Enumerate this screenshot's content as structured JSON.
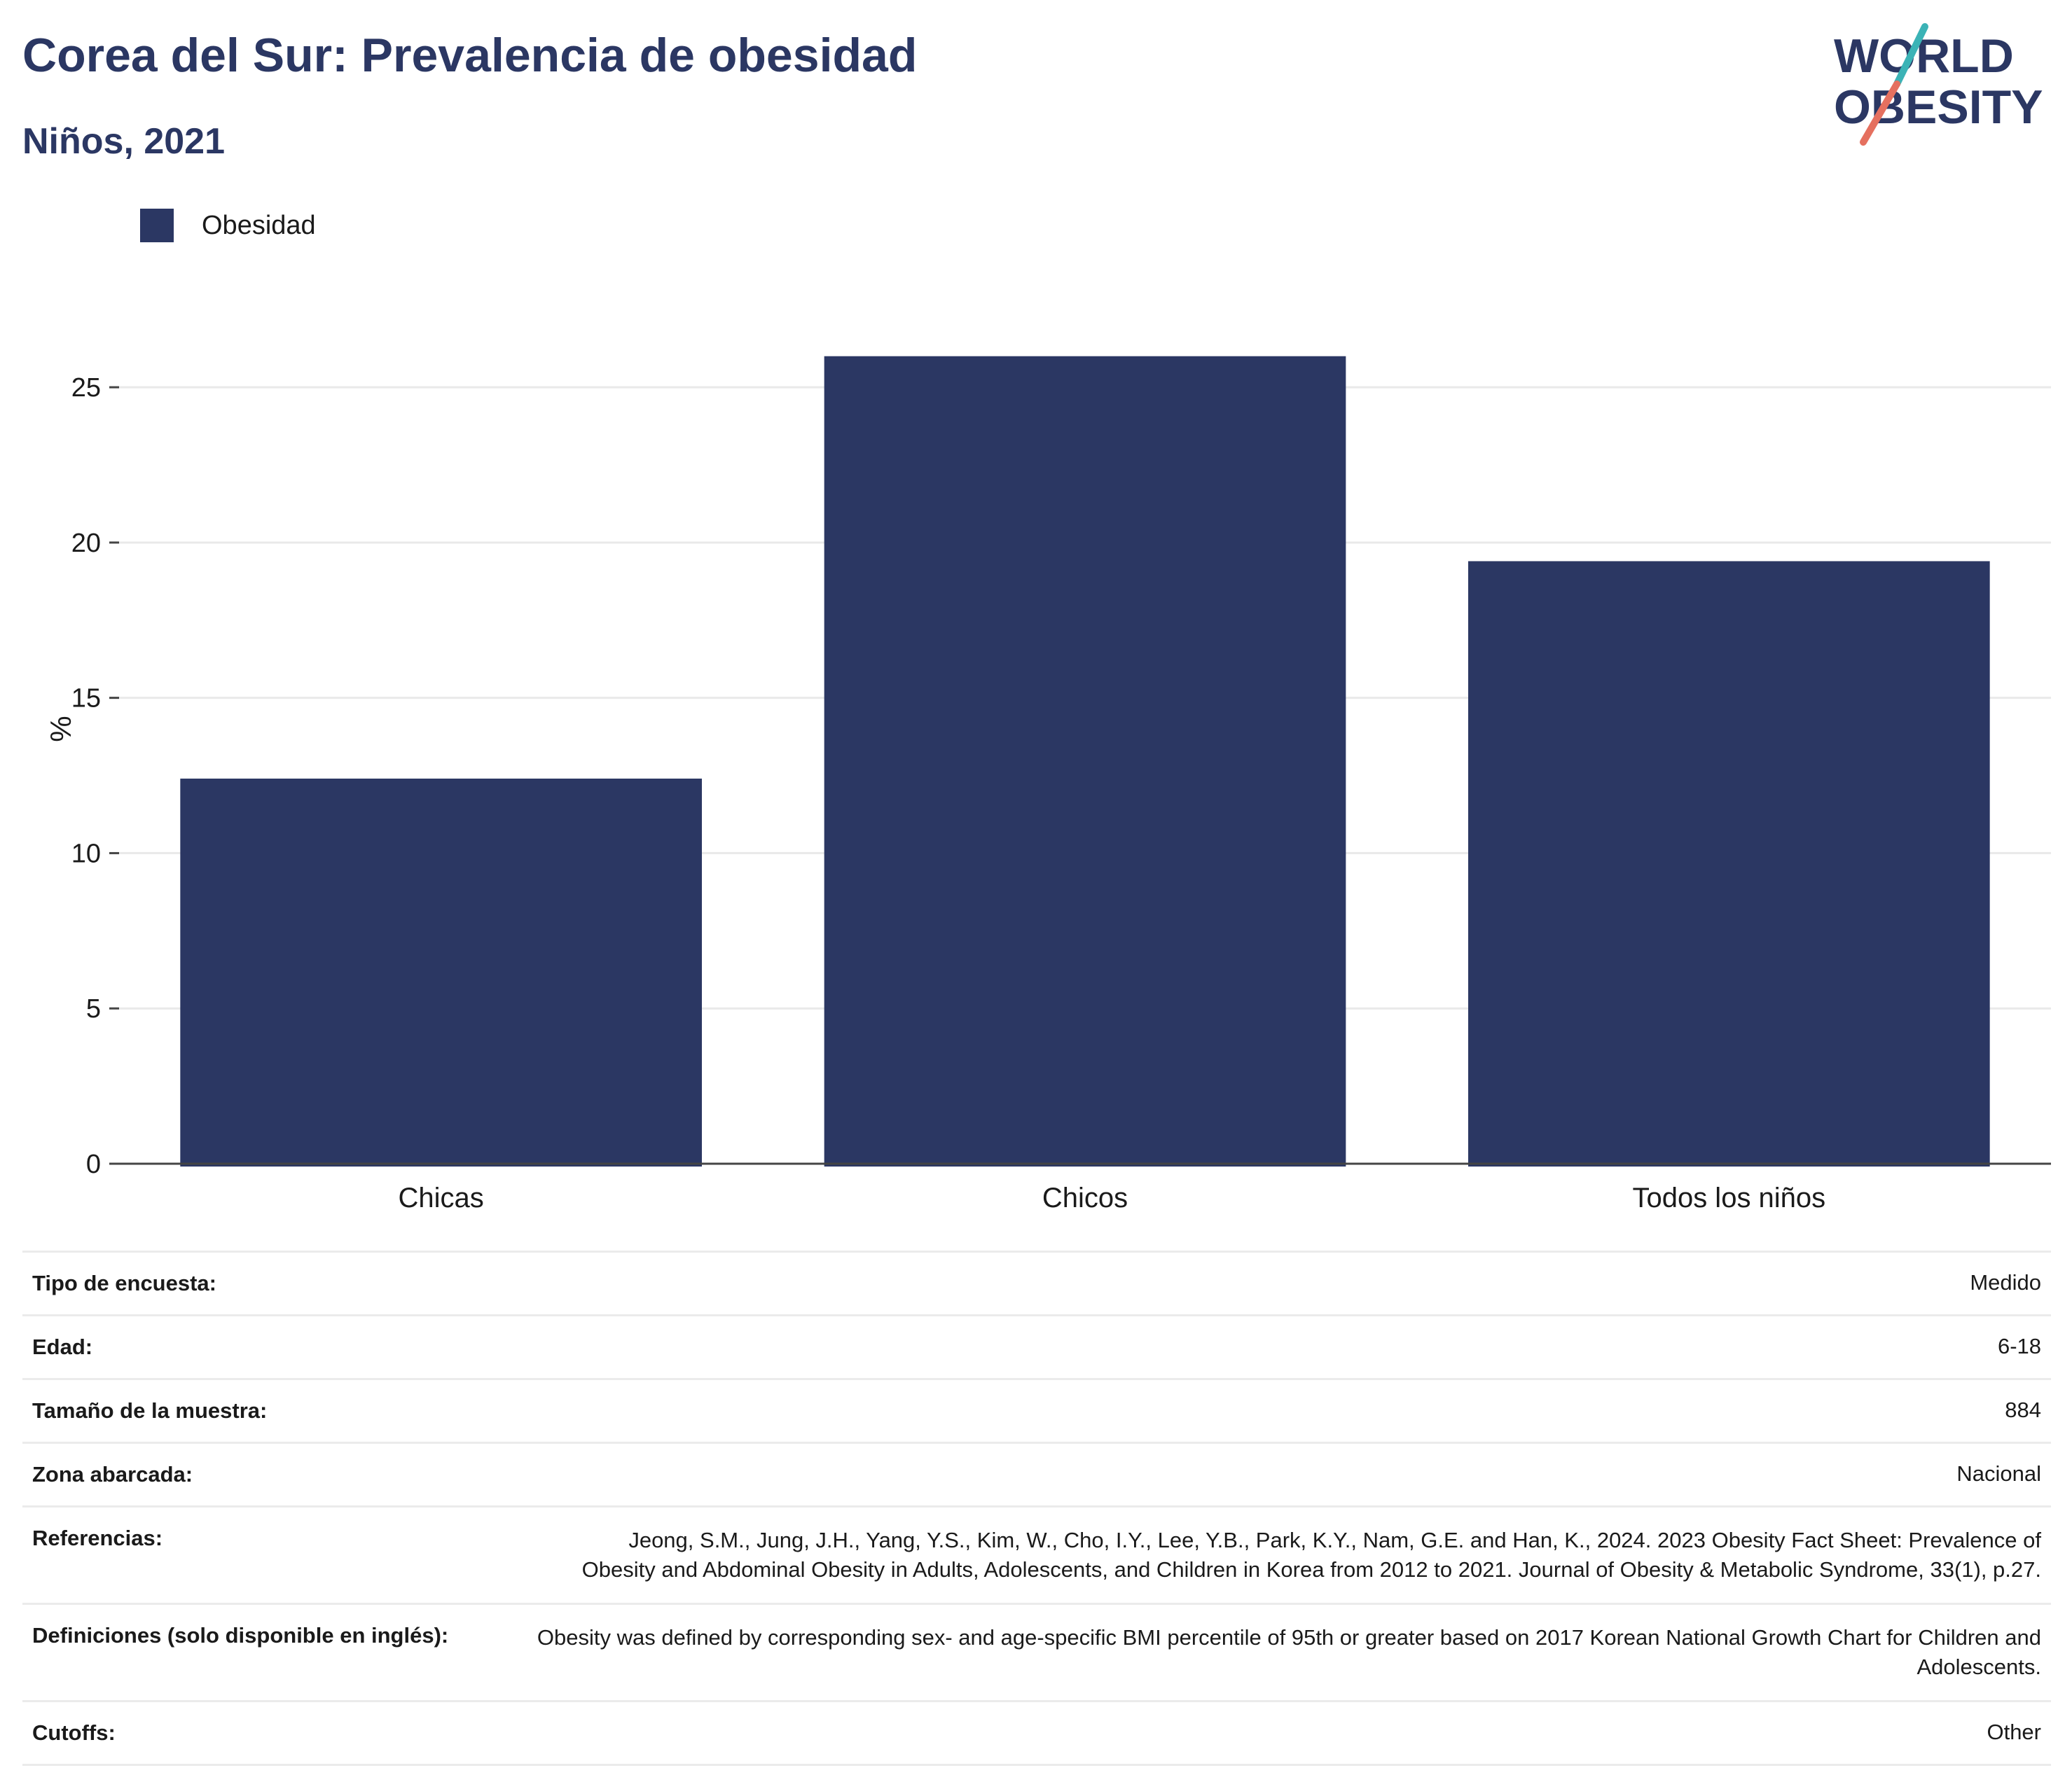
{
  "header": {
    "title": "Corea del Sur: Prevalencia de obesidad",
    "subtitle": "Niños, 2021"
  },
  "logo": {
    "line1": "WORLD",
    "line2": "OBESITY",
    "colors": {
      "text": "#2b3763",
      "teal": "#3bb3b6",
      "coral": "#e5705f"
    }
  },
  "chart_data": {
    "type": "bar",
    "categories": [
      "Chicas",
      "Chicos",
      "Todos los niños"
    ],
    "series": [
      {
        "name": "Obesidad",
        "values": [
          12.4,
          26.0,
          19.4
        ],
        "color": "#2b3763"
      }
    ],
    "ylabel": "%",
    "ylim": [
      0,
      28
    ],
    "yticks": [
      0,
      5,
      10,
      15,
      20,
      25
    ],
    "grid": true,
    "legend_position": "top-left"
  },
  "metadata": {
    "rows": [
      {
        "label": "Tipo de encuesta:",
        "value": "Medido"
      },
      {
        "label": "Edad:",
        "value": "6-18"
      },
      {
        "label": "Tamaño de la muestra:",
        "value": "884"
      },
      {
        "label": "Zona abarcada:",
        "value": "Nacional"
      },
      {
        "label": "Referencias:",
        "value": "Jeong, S.M., Jung, J.H., Yang, Y.S., Kim, W., Cho, I.Y., Lee, Y.B., Park, K.Y., Nam, G.E. and Han, K., 2024. 2023 Obesity Fact Sheet: Prevalence of Obesity and Abdominal Obesity in Adults, Adolescents, and Children in Korea from 2012 to 2021. Journal of Obesity & Metabolic Syndrome, 33(1), p.27."
      },
      {
        "label": "Definiciones (solo disponible en inglés):",
        "value": "Obesity was defined by corresponding sex- and age-specific BMI percentile of 95th or greater based on 2017 Korean National Growth Chart for Children and Adolescents."
      },
      {
        "label": "Cutoffs:",
        "value": "Other"
      }
    ]
  }
}
